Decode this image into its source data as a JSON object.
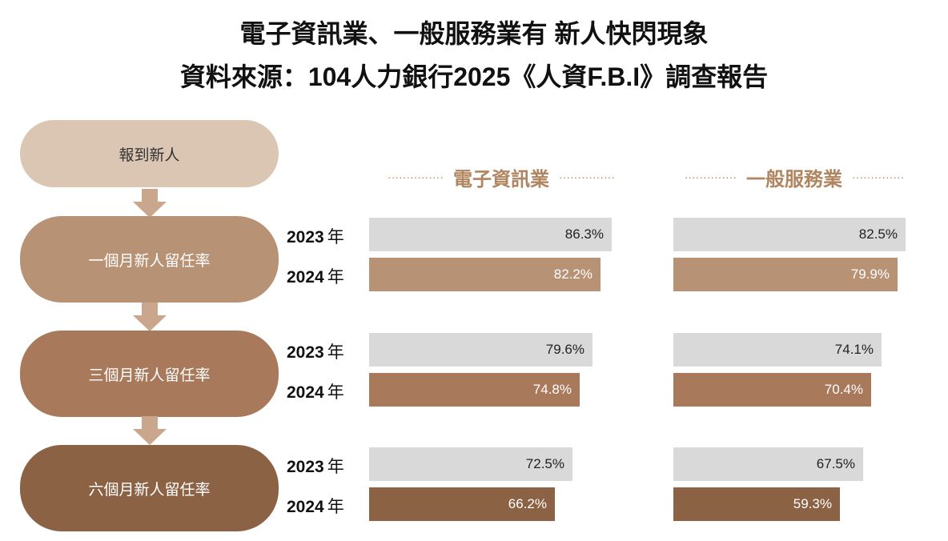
{
  "title": {
    "line1": "電子資訊業、一般服務業有 新人快閃現象",
    "line2": "資料來源：104人力銀行2025《人資F.B.I》調查報告"
  },
  "flow": {
    "start_label": "報到新人",
    "stages": [
      "一個月新人留任率",
      "三個月新人留任率",
      "六個月新人留任率"
    ]
  },
  "colors": {
    "start": "#dbc5b3",
    "stage_1": "#b89274",
    "stage_2": "#a8795a",
    "stage_3": "#8c6244",
    "arrow": "#c9a68c",
    "bar_2023": "#d9d9d9",
    "header_text": "#b08560"
  },
  "chart_data": {
    "type": "bar",
    "orientation": "horizontal",
    "title": "電子資訊業、一般服務業有 新人快閃現象",
    "subtitle": "資料來源：104人力銀行2025《人資F.B.I》調查報告",
    "year_labels": [
      "2023 年",
      "2024 年"
    ],
    "groups": [
      {
        "name": "電子資訊業",
        "values": [
          {
            "stage": "一個月新人留任率",
            "y2023": 86.3,
            "y2024": 82.2
          },
          {
            "stage": "三個月新人留任率",
            "y2023": 79.6,
            "y2024": 74.8
          },
          {
            "stage": "六個月新人留任率",
            "y2023": 72.5,
            "y2024": 66.2
          }
        ]
      },
      {
        "name": "一般服務業",
        "values": [
          {
            "stage": "一個月新人留任率",
            "y2023": 82.5,
            "y2024": 79.9
          },
          {
            "stage": "三個月新人留任率",
            "y2023": 74.1,
            "y2024": 70.4
          },
          {
            "stage": "六個月新人留任率",
            "y2023": 67.5,
            "y2024": 59.3
          }
        ]
      }
    ],
    "value_suffix": "%"
  }
}
